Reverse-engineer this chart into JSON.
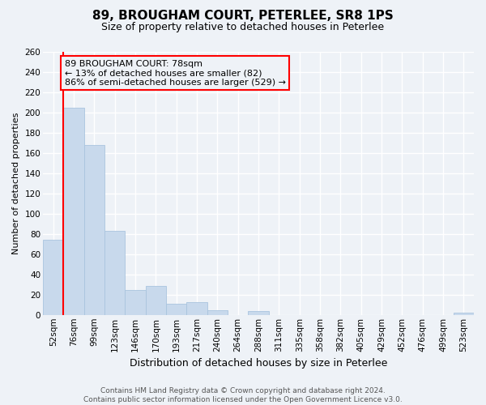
{
  "title": "89, BROUGHAM COURT, PETERLEE, SR8 1PS",
  "subtitle": "Size of property relative to detached houses in Peterlee",
  "xlabel": "Distribution of detached houses by size in Peterlee",
  "ylabel": "Number of detached properties",
  "footer_line1": "Contains HM Land Registry data © Crown copyright and database right 2024.",
  "footer_line2": "Contains public sector information licensed under the Open Government Licence v3.0.",
  "bin_labels": [
    "52sqm",
    "76sqm",
    "99sqm",
    "123sqm",
    "146sqm",
    "170sqm",
    "193sqm",
    "217sqm",
    "240sqm",
    "264sqm",
    "288sqm",
    "311sqm",
    "335sqm",
    "358sqm",
    "382sqm",
    "405sqm",
    "429sqm",
    "452sqm",
    "476sqm",
    "499sqm",
    "523sqm"
  ],
  "bar_heights": [
    74,
    205,
    168,
    83,
    25,
    29,
    11,
    13,
    5,
    0,
    4,
    0,
    0,
    0,
    0,
    0,
    0,
    0,
    0,
    0,
    2
  ],
  "ylim": [
    0,
    260
  ],
  "yticks": [
    0,
    20,
    40,
    60,
    80,
    100,
    120,
    140,
    160,
    180,
    200,
    220,
    240,
    260
  ],
  "bar_color": "#c8d9ec",
  "bar_edge_color": "#aac4de",
  "vline_color": "red",
  "vline_x_bar_index": 1,
  "annotation_box_text": "89 BROUGHAM COURT: 78sqm\n← 13% of detached houses are smaller (82)\n86% of semi-detached houses are larger (529) →",
  "box_edge_color": "red",
  "background_color": "#eef2f7",
  "grid_color": "white",
  "title_fontsize": 11,
  "subtitle_fontsize": 9,
  "ylabel_fontsize": 8,
  "xlabel_fontsize": 9,
  "tick_fontsize": 7.5,
  "annotation_fontsize": 8,
  "footer_fontsize": 6.5
}
